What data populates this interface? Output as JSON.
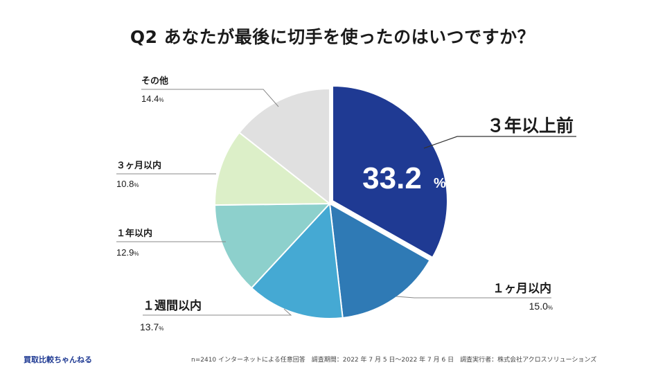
{
  "title": "Q2 あなたが最後に切手を使ったのはいつですか？",
  "chart_data": {
    "type": "pie",
    "title": "Q2 あなたが最後に切手を使ったのはいつですか？",
    "slices": [
      {
        "label": "３年以上前",
        "value": 33.2,
        "value_text": "33.2",
        "color": "#1f3a93"
      },
      {
        "label": "１ヶ月以内",
        "value": 15.0,
        "value_text": "15.0",
        "color": "#2f7ab5"
      },
      {
        "label": "１週間以内",
        "value": 13.7,
        "value_text": "13.7",
        "color": "#45a9d3"
      },
      {
        "label": "１年以内",
        "value": 12.9,
        "value_text": "12.9",
        "color": "#8dd0cc"
      },
      {
        "label": "３ヶ月以内",
        "value": 10.8,
        "value_text": "10.8",
        "color": "#dcefc8"
      },
      {
        "label": "その他",
        "value": 14.4,
        "value_text": "14.4",
        "color": "#e0e0e0"
      }
    ],
    "unit": "%",
    "start_angle": "12 o'clock",
    "direction": "clockwise",
    "exploded_slice": "３年以上前"
  },
  "brand": "買取比較ちゃんねる",
  "footnote": "n=2410 インターネットによる任意回答　調査期間：2022 年 7 月 5 日～2022 年 7 月 6 日　調査実行者：株式会社アクロスソリューションズ"
}
